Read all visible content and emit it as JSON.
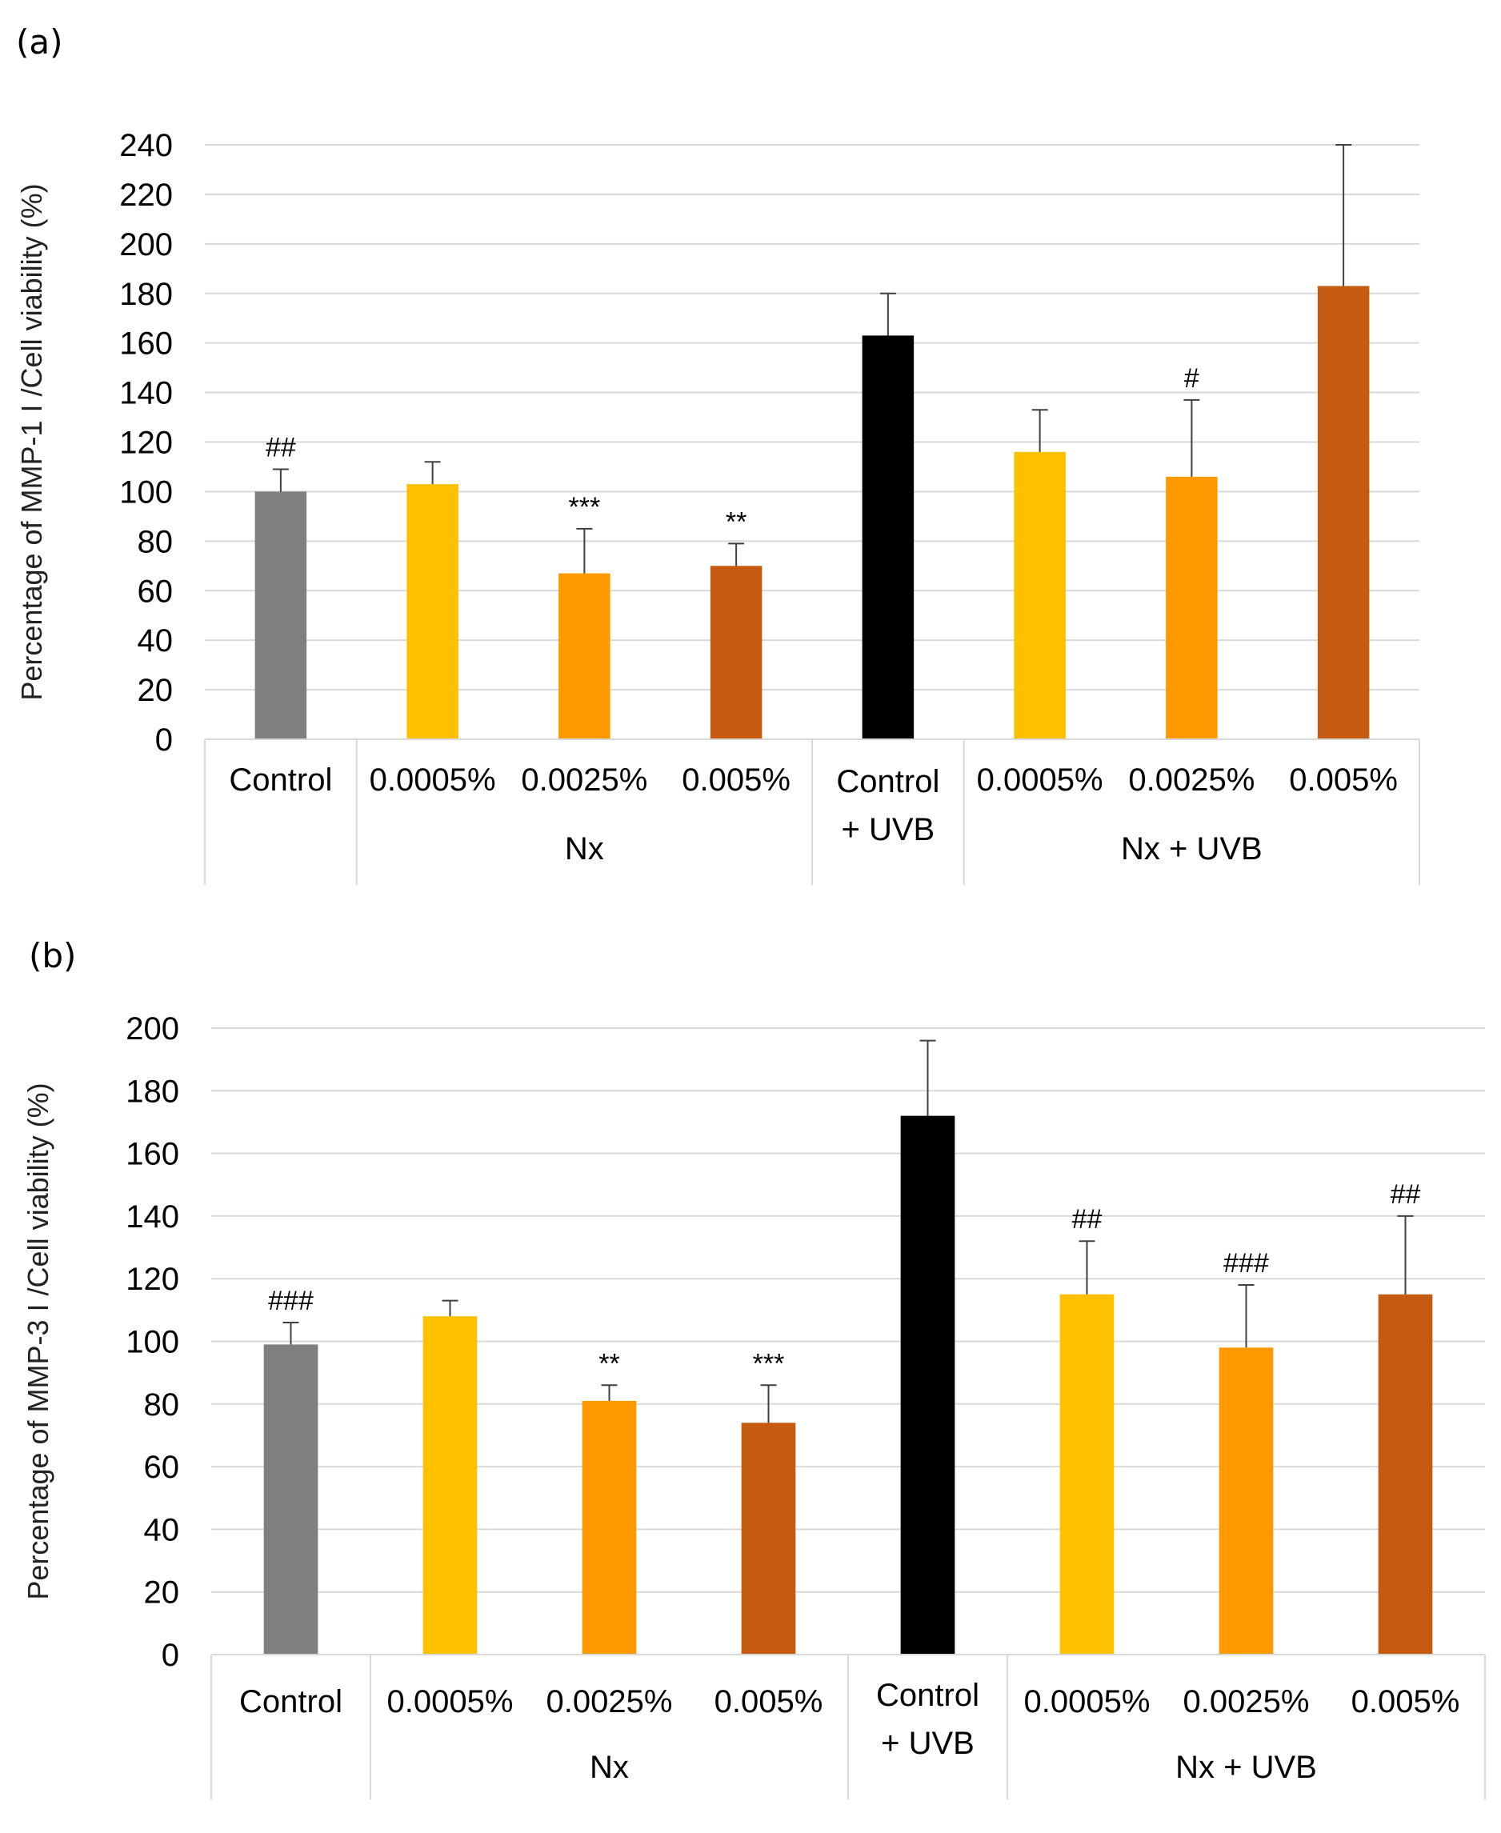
{
  "chart_data": [
    {
      "type": "bar",
      "panel": "(a)",
      "ylabel": "Percentage of MMP-1 I /Cell viability (%)",
      "ylim": [
        0,
        240
      ],
      "yticks": [
        0,
        20,
        40,
        60,
        80,
        100,
        120,
        140,
        160,
        180,
        200,
        220,
        240
      ],
      "grid": true,
      "categories": [
        "Control",
        "0.0005%",
        "0.0025%",
        "0.005%",
        "Control + UVB",
        "0.0005%",
        "0.0025%",
        "0.005%"
      ],
      "groups": [
        {
          "label": "",
          "span": [
            0,
            0
          ]
        },
        {
          "label": "Nx",
          "span": [
            1,
            3
          ]
        },
        {
          "label": "",
          "span": [
            4,
            4
          ]
        },
        {
          "label": "Nx + UVB",
          "span": [
            5,
            7
          ]
        }
      ],
      "values": [
        100,
        103,
        67,
        70,
        163,
        116,
        106,
        183
      ],
      "errors": [
        9,
        9,
        18,
        9,
        17,
        17,
        31,
        57
      ],
      "significance": [
        "##",
        "",
        "***",
        "**",
        "",
        "",
        "#",
        ""
      ],
      "colors": [
        "#7f7f7f",
        "#ffc000",
        "#ff9900",
        "#c55a11",
        "#000000",
        "#ffc000",
        "#ff9900",
        "#c55a11"
      ]
    },
    {
      "type": "bar",
      "panel": "(b)",
      "ylabel": "Percentage of MMP-3 I /Cell viability (%)",
      "ylim": [
        0,
        200
      ],
      "yticks": [
        0,
        20,
        40,
        60,
        80,
        100,
        120,
        140,
        160,
        180,
        200
      ],
      "grid": true,
      "categories": [
        "Control",
        "0.0005%",
        "0.0025%",
        "0.005%",
        "Control + UVB",
        "0.0005%",
        "0.0025%",
        "0.005%"
      ],
      "groups": [
        {
          "label": "",
          "span": [
            0,
            0
          ]
        },
        {
          "label": "Nx",
          "span": [
            1,
            3
          ]
        },
        {
          "label": "",
          "span": [
            4,
            4
          ]
        },
        {
          "label": "Nx + UVB",
          "span": [
            5,
            7
          ]
        }
      ],
      "values": [
        99,
        108,
        81,
        74,
        172,
        115,
        98,
        115
      ],
      "errors": [
        7,
        5,
        5,
        12,
        24,
        17,
        20,
        25
      ],
      "significance": [
        "###",
        "",
        "**",
        "***",
        "",
        "##",
        "###",
        "##"
      ],
      "colors": [
        "#7f7f7f",
        "#ffc000",
        "#ff9900",
        "#c55a11",
        "#000000",
        "#ffc000",
        "#ff9900",
        "#c55a11"
      ]
    }
  ]
}
